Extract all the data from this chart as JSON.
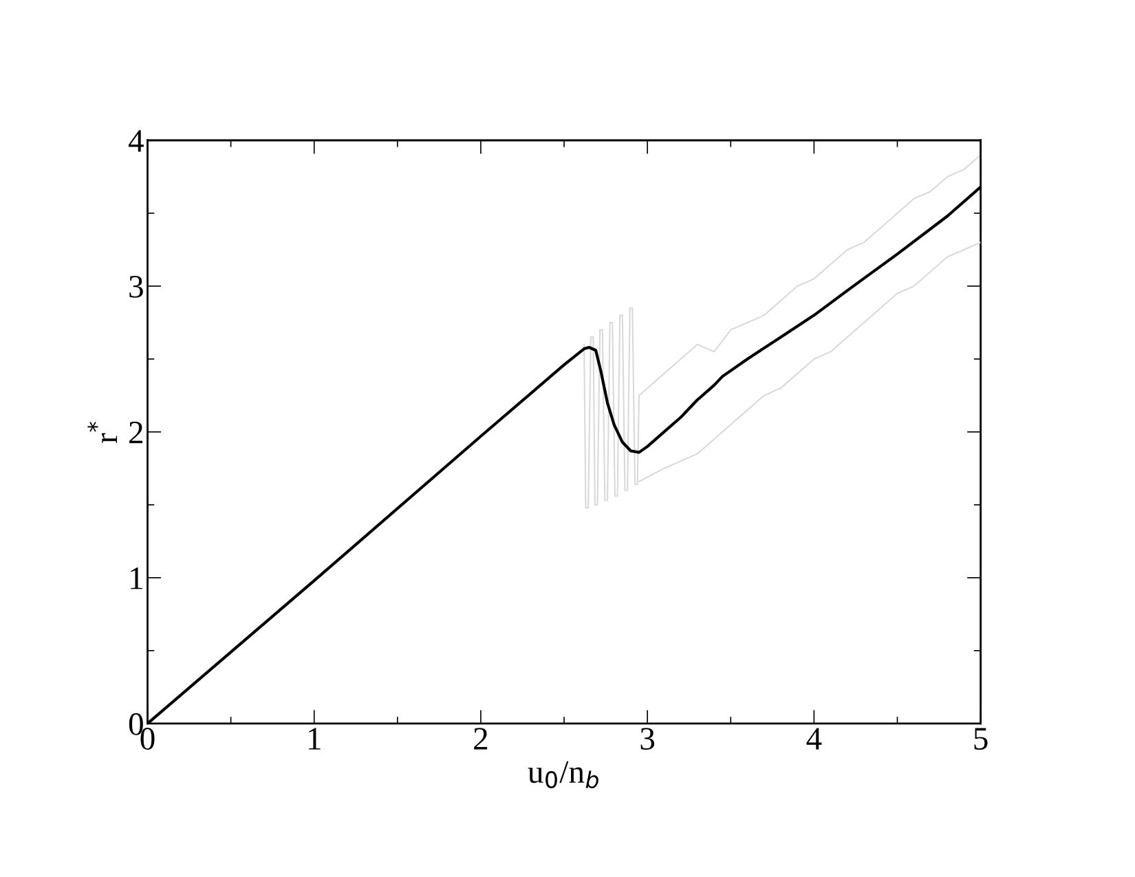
{
  "chart_data": {
    "type": "line",
    "xlabel": "u$_{0}$/n$_{b}$",
    "ylabel": "r$^{*}$",
    "xlim": [
      0,
      5
    ],
    "ylim": [
      0,
      4
    ],
    "xticks": [
      0,
      1,
      2,
      3,
      4,
      5
    ],
    "yticks": [
      0,
      1,
      2,
      3,
      4
    ],
    "grid": false,
    "marker": "none",
    "line_style": "solid",
    "series": [
      {
        "color": "#d9d9d9",
        "x": [
          2.62,
          2.63,
          2.645,
          2.66,
          2.675,
          2.685,
          2.7,
          2.715,
          2.73,
          2.745,
          2.76,
          2.775,
          2.79,
          2.805,
          2.82,
          2.835,
          2.85,
          2.865,
          2.88,
          2.895,
          2.91,
          2.925,
          2.94,
          2.95,
          3.1,
          3.2,
          3.3,
          3.4,
          3.5,
          3.6,
          3.7,
          3.8,
          3.9,
          4.0,
          4.1,
          4.2,
          4.3,
          4.4,
          4.5,
          4.6,
          4.7,
          4.8,
          4.9,
          5.0
        ],
        "values": [
          2.6,
          1.48,
          1.48,
          2.65,
          2.65,
          1.5,
          1.5,
          2.7,
          2.7,
          1.53,
          1.53,
          2.75,
          2.75,
          1.56,
          1.56,
          2.8,
          2.8,
          1.6,
          1.6,
          2.85,
          2.85,
          1.64,
          1.64,
          2.25,
          2.4,
          2.5,
          2.6,
          2.55,
          2.7,
          2.75,
          2.8,
          2.9,
          3.0,
          3.05,
          3.15,
          3.25,
          3.3,
          3.4,
          3.5,
          3.6,
          3.65,
          3.75,
          3.8,
          3.9
        ]
      },
      {
        "color": "#d9d9d9",
        "x": [
          2.95,
          3.1,
          3.2,
          3.3,
          3.4,
          3.5,
          3.6,
          3.7,
          3.8,
          3.9,
          4.0,
          4.1,
          4.2,
          4.3,
          4.4,
          4.5,
          4.6,
          4.7,
          4.8,
          4.9,
          5.0
        ],
        "values": [
          1.66,
          1.75,
          1.8,
          1.85,
          1.95,
          2.05,
          2.15,
          2.25,
          2.3,
          2.4,
          2.5,
          2.55,
          2.65,
          2.75,
          2.85,
          2.95,
          3.0,
          3.1,
          3.2,
          3.25,
          3.3
        ]
      },
      {
        "color": "#000000",
        "x": [
          0,
          1,
          2,
          2.5,
          2.62,
          2.65,
          2.69,
          2.72,
          2.76,
          2.8,
          2.85,
          2.9,
          2.95,
          3.0,
          3.1,
          3.2,
          3.3,
          3.4,
          3.45,
          3.6,
          3.8,
          4.0,
          4.2,
          4.5,
          4.8,
          5.0
        ],
        "values": [
          0,
          0.98,
          1.97,
          2.46,
          2.57,
          2.58,
          2.56,
          2.42,
          2.2,
          2.05,
          1.93,
          1.87,
          1.86,
          1.9,
          2.0,
          2.1,
          2.22,
          2.32,
          2.38,
          2.5,
          2.65,
          2.8,
          2.97,
          3.22,
          3.48,
          3.68
        ]
      }
    ]
  }
}
